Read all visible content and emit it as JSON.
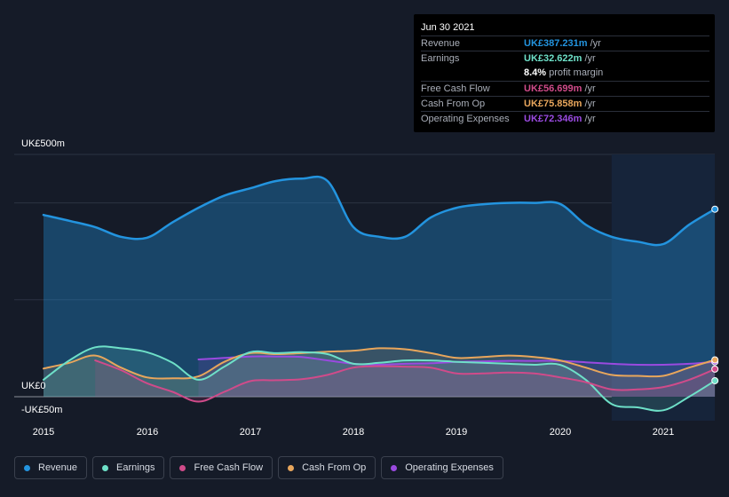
{
  "tooltip": {
    "date": "Jun 30 2021",
    "rows": [
      {
        "label": "Revenue",
        "value": "UK£387.231m",
        "unit": "/yr",
        "color": "#2394df"
      },
      {
        "label": "Earnings",
        "value": "UK£32.622m",
        "unit": "/yr",
        "color": "#6ee0c8"
      },
      {
        "margin_value": "8.4%",
        "margin_label": "profit margin"
      },
      {
        "label": "Free Cash Flow",
        "value": "UK£56.699m",
        "unit": "/yr",
        "color": "#d04b8a"
      },
      {
        "label": "Cash From Op",
        "value": "UK£75.858m",
        "unit": "/yr",
        "color": "#e8a65c"
      },
      {
        "label": "Operating Expenses",
        "value": "UK£72.346m",
        "unit": "/yr",
        "color": "#9a4ae0"
      }
    ]
  },
  "legend": [
    {
      "label": "Revenue",
      "color": "#2394df"
    },
    {
      "label": "Earnings",
      "color": "#6ee0c8"
    },
    {
      "label": "Free Cash Flow",
      "color": "#d04b8a"
    },
    {
      "label": "Cash From Op",
      "color": "#e8a65c"
    },
    {
      "label": "Operating Expenses",
      "color": "#9a4ae0"
    }
  ],
  "chart_data": {
    "type": "area",
    "ylabels": [
      "UK£500m",
      "UK£0",
      "-UK£50m"
    ],
    "ylim": [
      -50,
      500
    ],
    "xlim": [
      2014.87,
      2021.5
    ],
    "xticks": [
      "2015",
      "2016",
      "2017",
      "2018",
      "2019",
      "2020",
      "2021"
    ],
    "forecast_shade_start": 2020.5,
    "grid": true,
    "legend_position": "bottom",
    "series": [
      {
        "name": "Revenue",
        "color": "#2394df",
        "x": [
          2015.0,
          2015.25,
          2015.5,
          2015.75,
          2016.0,
          2016.25,
          2016.5,
          2016.75,
          2017.0,
          2017.25,
          2017.5,
          2017.75,
          2018.0,
          2018.25,
          2018.5,
          2018.75,
          2019.0,
          2019.25,
          2019.5,
          2019.75,
          2020.0,
          2020.25,
          2020.5,
          2020.75,
          2021.0,
          2021.25,
          2021.5
        ],
        "values": [
          375,
          363,
          350,
          330,
          328,
          360,
          390,
          415,
          430,
          445,
          450,
          445,
          350,
          330,
          330,
          370,
          390,
          397,
          400,
          400,
          398,
          355,
          330,
          320,
          315,
          355,
          387
        ]
      },
      {
        "name": "Earnings",
        "color": "#6ee0c8",
        "x": [
          2015.0,
          2015.25,
          2015.5,
          2015.75,
          2016.0,
          2016.25,
          2016.5,
          2016.75,
          2017.0,
          2017.25,
          2017.5,
          2017.75,
          2018.0,
          2018.25,
          2018.5,
          2018.75,
          2019.0,
          2019.25,
          2019.5,
          2019.75,
          2020.0,
          2020.25,
          2020.5,
          2020.75,
          2021.0,
          2021.25,
          2021.5
        ],
        "values": [
          35,
          75,
          102,
          100,
          92,
          70,
          35,
          62,
          92,
          90,
          92,
          88,
          68,
          70,
          75,
          75,
          72,
          70,
          68,
          66,
          66,
          35,
          -15,
          -22,
          -28,
          0,
          33
        ]
      },
      {
        "name": "Free Cash Flow",
        "color": "#d04b8a",
        "x": [
          2015.5,
          2015.75,
          2016.0,
          2016.25,
          2016.5,
          2016.75,
          2017.0,
          2017.25,
          2017.5,
          2017.75,
          2018.0,
          2018.25,
          2018.5,
          2018.75,
          2019.0,
          2019.25,
          2019.5,
          2019.75,
          2020.0,
          2020.25,
          2020.5,
          2020.75,
          2021.0,
          2021.25,
          2021.5
        ],
        "values": [
          75,
          55,
          28,
          10,
          -10,
          10,
          32,
          34,
          36,
          45,
          60,
          63,
          62,
          60,
          48,
          48,
          50,
          48,
          40,
          30,
          15,
          15,
          20,
          35,
          57
        ]
      },
      {
        "name": "Cash From Op",
        "color": "#e8a65c",
        "x": [
          2015.0,
          2015.25,
          2015.5,
          2015.75,
          2016.0,
          2016.25,
          2016.5,
          2016.75,
          2017.0,
          2017.25,
          2017.5,
          2017.75,
          2018.0,
          2018.25,
          2018.5,
          2018.75,
          2019.0,
          2019.25,
          2019.5,
          2019.75,
          2020.0,
          2020.25,
          2020.5,
          2020.75,
          2021.0,
          2021.25,
          2021.5
        ],
        "values": [
          58,
          70,
          85,
          60,
          40,
          38,
          42,
          72,
          90,
          88,
          90,
          93,
          95,
          100,
          98,
          90,
          80,
          82,
          85,
          82,
          75,
          60,
          45,
          43,
          43,
          60,
          76
        ]
      },
      {
        "name": "Operating Expenses",
        "color": "#9a4ae0",
        "x": [
          2016.5,
          2016.75,
          2017.0,
          2017.25,
          2017.5,
          2017.75,
          2018.0,
          2018.25,
          2018.5,
          2018.75,
          2019.0,
          2019.25,
          2019.5,
          2019.75,
          2020.0,
          2020.25,
          2020.5,
          2020.75,
          2021.0,
          2021.25,
          2021.5
        ],
        "values": [
          77,
          80,
          83,
          83,
          82,
          75,
          68,
          66,
          68,
          69,
          72,
          73,
          74,
          74,
          74,
          71,
          68,
          66,
          66,
          68,
          72
        ]
      }
    ]
  }
}
